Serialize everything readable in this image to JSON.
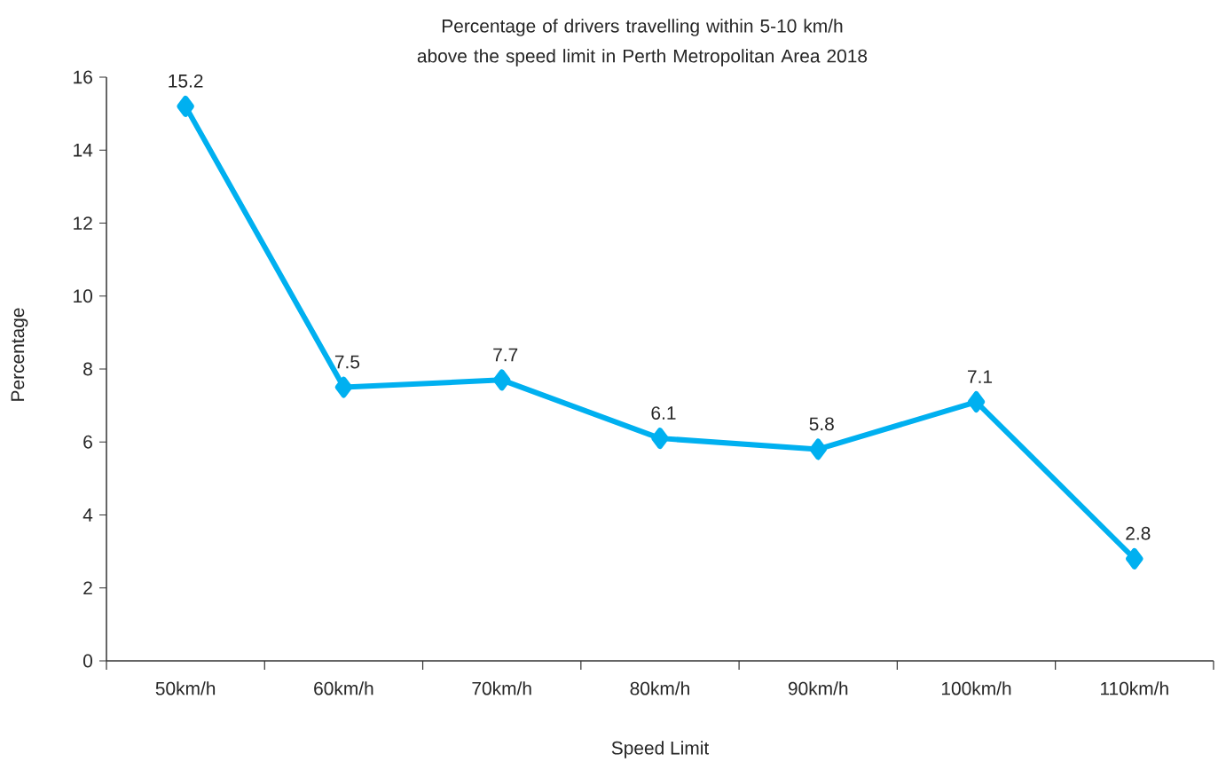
{
  "chart_data": {
    "type": "line",
    "title": "Percentage of drivers travelling within 5-10 km/h above the speed limit in Perth Metropolitan Area 2018",
    "xlabel": "Speed Limit",
    "ylabel": "Percentage",
    "categories": [
      "50km/h",
      "60km/h",
      "70km/h",
      "80km/h",
      "90km/h",
      "100km/h",
      "110km/h"
    ],
    "values": [
      15.2,
      7.5,
      7.7,
      6.1,
      5.8,
      7.1,
      2.8
    ],
    "color": "#00b0f0",
    "marker": "diamond",
    "line_style": "solid",
    "data_labels": true,
    "grid": false,
    "ylim": [
      0,
      16
    ],
    "yticks": [
      0,
      2,
      4,
      6,
      8,
      10,
      12,
      14,
      16
    ]
  }
}
